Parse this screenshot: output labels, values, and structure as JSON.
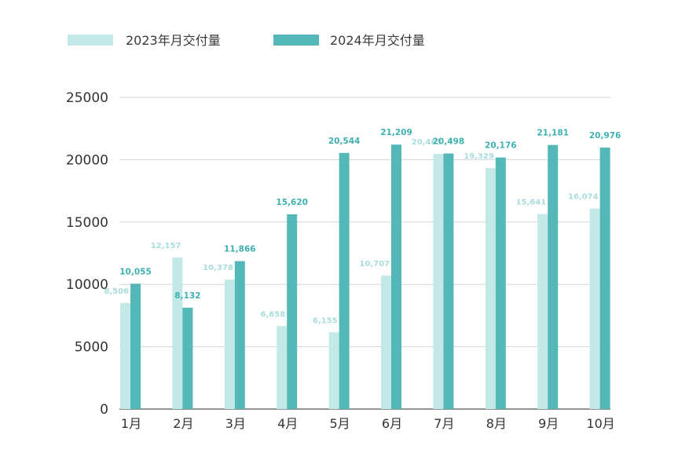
{
  "chart_data": {
    "type": "bar",
    "categories": [
      "1月",
      "2月",
      "3月",
      "4月",
      "5月",
      "6月",
      "7月",
      "8月",
      "9月",
      "10月"
    ],
    "series": [
      {
        "name": "2023年月交付量",
        "color": "#c3e8e8",
        "label_color": "#a9dcdc",
        "values": [
          8506,
          12157,
          10378,
          6658,
          6155,
          10707,
          20463,
          19329,
          15641,
          16074
        ],
        "labels": [
          "8,506",
          "12,157",
          "10,378",
          "6,658",
          "6,155",
          "10,707",
          "20,463",
          "19,329",
          "15,641",
          "16,074"
        ]
      },
      {
        "name": "2024年月交付量",
        "color": "#55b8b8",
        "label_color": "#3fb0b0",
        "values": [
          10055,
          8132,
          11866,
          15620,
          20544,
          21209,
          20498,
          20176,
          21181,
          20976
        ],
        "labels": [
          "10,055",
          "8,132",
          "11,866",
          "15,620",
          "20,544",
          "21,209",
          "20,498",
          "20,176",
          "21,181",
          "20,976"
        ]
      }
    ],
    "ylim": [
      0,
      25000
    ],
    "yticks": [
      "0",
      "5000",
      "10000",
      "15000",
      "20000",
      "25000"
    ],
    "ytick_values": [
      0,
      5000,
      10000,
      15000,
      20000,
      25000
    ],
    "grid": true,
    "legend_position": "top-left",
    "title": "",
    "xlabel": "",
    "ylabel": ""
  }
}
